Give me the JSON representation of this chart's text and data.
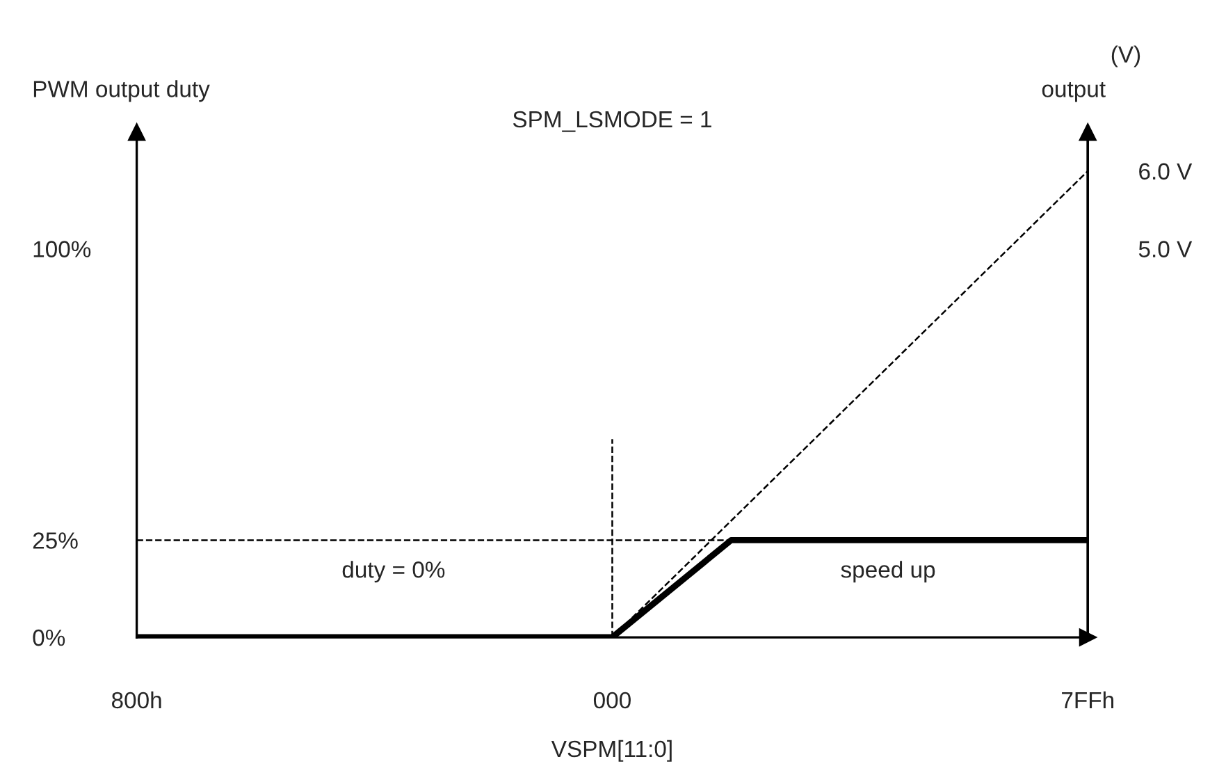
{
  "chart_data": {
    "type": "line",
    "title": "SPM_LSMODE = 1",
    "xlabel": "VSPM[11:0]",
    "ylabel": "PWM output duty",
    "y2label": "output",
    "annotations": [
      "(V)",
      "duty = 0%",
      "speed up"
    ],
    "categories": [
      "800h",
      null,
      null,
      null,
      "000",
      null,
      null,
      null,
      "7FFh"
    ],
    "ylim": [
      0,
      130
    ],
    "yticks": [
      {
        "value": 0,
        "label": "0%"
      },
      {
        "value": 25,
        "label": "25%"
      },
      {
        "value": 100,
        "label": "100%"
      }
    ],
    "y2lim": [
      0,
      6.5
    ],
    "y2ticks": [
      {
        "value": 5.0,
        "label": "5.0 V"
      },
      {
        "value": 6.0,
        "label": "6.0 V"
      }
    ],
    "grid": false,
    "series": [
      {
        "color": "#000000",
        "values": [
          0,
          0,
          0,
          0,
          0,
          25,
          25,
          25,
          25
        ],
        "line_style": "solid"
      },
      {
        "color": "#000000",
        "values": [
          null,
          null,
          null,
          null,
          0,
          30,
          60,
          90,
          120
        ],
        "line_style": "dashed"
      },
      {
        "color": "#000000",
        "values": [
          25,
          25,
          25,
          25,
          25,
          25,
          null,
          null,
          null
        ],
        "line_style": "dashed"
      },
      {
        "color": "#000000",
        "x": [
          "000",
          "000"
        ],
        "values": [
          0,
          51
        ],
        "line_style": "dashed"
      }
    ]
  }
}
